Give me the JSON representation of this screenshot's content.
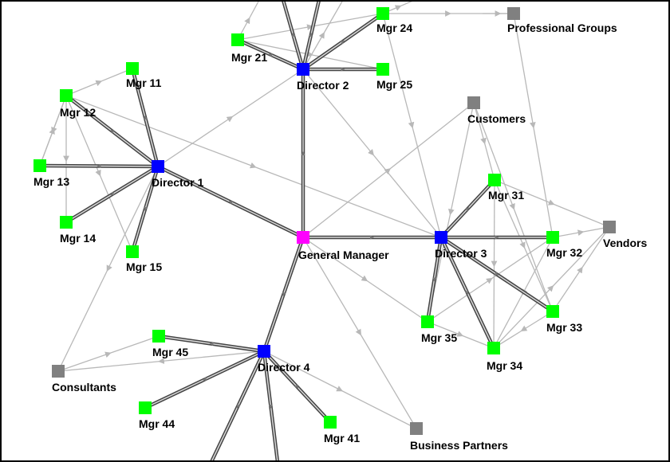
{
  "colors": {
    "manager": "#ff00ff",
    "director": "#0000ff",
    "mgr": "#00ff00",
    "external": "#808080",
    "strong_edge": "#444444",
    "weak_edge": "#b8b8b8",
    "frame": "#000000"
  },
  "nodes": {
    "gm": {
      "label": "General Manager",
      "kind": "manager"
    },
    "d1": {
      "label": "Director 1",
      "kind": "director"
    },
    "d2": {
      "label": "Director 2",
      "kind": "director"
    },
    "d3": {
      "label": "Director 3",
      "kind": "director"
    },
    "d4": {
      "label": "Director 4",
      "kind": "director"
    },
    "m11": {
      "label": "Mgr 11",
      "kind": "mgr"
    },
    "m12": {
      "label": "Mgr 12",
      "kind": "mgr"
    },
    "m13": {
      "label": "Mgr 13",
      "kind": "mgr"
    },
    "m14": {
      "label": "Mgr 14",
      "kind": "mgr"
    },
    "m15": {
      "label": "Mgr 15",
      "kind": "mgr"
    },
    "m21": {
      "label": "Mgr 21",
      "kind": "mgr"
    },
    "m24": {
      "label": "Mgr 24",
      "kind": "mgr"
    },
    "m25": {
      "label": "Mgr 25",
      "kind": "mgr"
    },
    "m31": {
      "label": "Mgr 31",
      "kind": "mgr"
    },
    "m32": {
      "label": "Mgr 32",
      "kind": "mgr"
    },
    "m33": {
      "label": "Mgr 33",
      "kind": "mgr"
    },
    "m34": {
      "label": "Mgr 34",
      "kind": "mgr"
    },
    "m35": {
      "label": "Mgr 35",
      "kind": "mgr"
    },
    "m41": {
      "label": "Mgr 41",
      "kind": "mgr"
    },
    "m44": {
      "label": "Mgr 44",
      "kind": "mgr"
    },
    "m45": {
      "label": "Mgr 45",
      "kind": "mgr"
    },
    "pg": {
      "label": "Professional Groups",
      "kind": "external"
    },
    "cust": {
      "label": "Customers",
      "kind": "external"
    },
    "vend": {
      "label": "Vendors",
      "kind": "external"
    },
    "cons": {
      "label": "Consultants",
      "kind": "external"
    },
    "bp": {
      "label": "Business Partners",
      "kind": "external"
    }
  },
  "strong_edges": [
    [
      "gm",
      "d1"
    ],
    [
      "gm",
      "d2"
    ],
    [
      "gm",
      "d3"
    ],
    [
      "gm",
      "d4"
    ],
    [
      "d1",
      "m11"
    ],
    [
      "d1",
      "m12"
    ],
    [
      "d1",
      "m13"
    ],
    [
      "d1",
      "m14"
    ],
    [
      "d1",
      "m15"
    ],
    [
      "d2",
      "m21"
    ],
    [
      "d2",
      "m24"
    ],
    [
      "d2",
      "m25"
    ],
    [
      "d2",
      "off_a"
    ],
    [
      "d2",
      "off_b"
    ],
    [
      "d3",
      "m31"
    ],
    [
      "d3",
      "m32"
    ],
    [
      "d3",
      "m33"
    ],
    [
      "d3",
      "m34"
    ],
    [
      "d3",
      "m35"
    ],
    [
      "d4",
      "m41"
    ],
    [
      "d4",
      "m44"
    ],
    [
      "d4",
      "m45"
    ],
    [
      "d4",
      "off_c"
    ],
    [
      "d4",
      "off_d"
    ]
  ],
  "weak_edges": [
    [
      "d1",
      "cons"
    ],
    [
      "d1",
      "m2_area"
    ],
    [
      "m12",
      "d3"
    ],
    [
      "m12",
      "m11"
    ],
    [
      "m12",
      "m13"
    ],
    [
      "m12",
      "m14"
    ],
    [
      "m12",
      "m15"
    ],
    [
      "m13",
      "m12"
    ],
    [
      "m21",
      "off_e"
    ],
    [
      "m21",
      "m24"
    ],
    [
      "m21",
      "m25"
    ],
    [
      "m24",
      "pg"
    ],
    [
      "m24",
      "off_f"
    ],
    [
      "off_g",
      "pg"
    ],
    [
      "d2",
      "d3"
    ],
    [
      "m24",
      "d3"
    ],
    [
      "pg",
      "m32"
    ],
    [
      "gm",
      "cust"
    ],
    [
      "gm",
      "bp"
    ],
    [
      "gm",
      "m35"
    ],
    [
      "cust",
      "m35"
    ],
    [
      "cust",
      "m33"
    ],
    [
      "cust",
      "m31"
    ],
    [
      "m31",
      "vend"
    ],
    [
      "m32",
      "vend"
    ],
    [
      "m33",
      "vend"
    ],
    [
      "m34",
      "vend"
    ],
    [
      "m31",
      "m33"
    ],
    [
      "m32",
      "m34"
    ],
    [
      "m35",
      "m34"
    ],
    [
      "m35",
      "m32"
    ],
    [
      "m33",
      "m34"
    ],
    [
      "m31",
      "m34"
    ],
    [
      "d4",
      "bp"
    ],
    [
      "d4",
      "cons"
    ],
    [
      "cons",
      "m45"
    ],
    [
      "m2_area",
      "off_h"
    ]
  ]
}
